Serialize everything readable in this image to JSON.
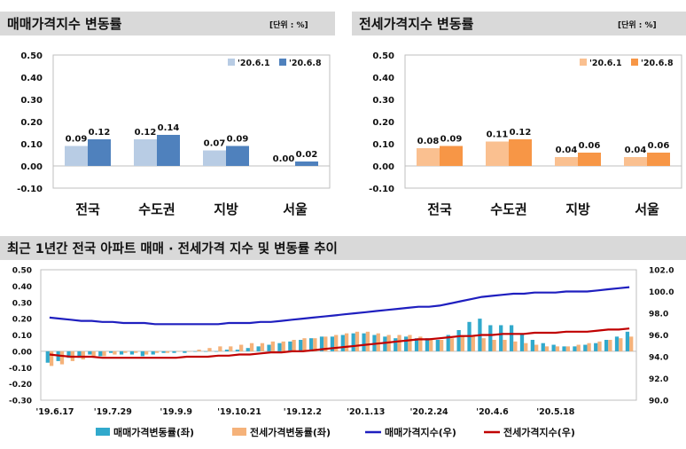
{
  "headers": {
    "sale": {
      "title": "매매가격지수 변동률",
      "unit": "[단위 : %]"
    },
    "jeonse": {
      "title": "전세가격지수 변동률",
      "unit": "[단위 : %]"
    },
    "trend": {
      "title": "최근 1년간 전국 아파트 매매 · 전세가격 지수 및 변동률 추이"
    }
  },
  "colors": {
    "sale_light": "#b8cce4",
    "sale_dark": "#4f81bd",
    "jeonse_light": "#fac090",
    "jeonse_dark": "#f79646",
    "sale_change_bar": "#31a9cc",
    "jeonse_change_bar": "#f5b27a",
    "sale_index_line": "#1f1fbf",
    "jeonse_index_line": "#c00000"
  },
  "chart_data": [
    {
      "type": "bar",
      "categories": [
        "전국",
        "수도권",
        "지방",
        "서울"
      ],
      "series": [
        {
          "name": "'20.6.1",
          "values": [
            0.09,
            0.12,
            0.07,
            0.0
          ]
        },
        {
          "name": "'20.6.8",
          "values": [
            0.12,
            0.14,
            0.09,
            0.02
          ]
        }
      ],
      "data_labels": [
        [
          "0.09",
          "0.12",
          "0.07",
          "0.00"
        ],
        [
          "0.12",
          "0.14",
          "0.09",
          "0.02"
        ]
      ],
      "ylim": [
        -0.1,
        0.5
      ],
      "yticks": [
        "0.50",
        "0.40",
        "0.30",
        "0.20",
        "0.10",
        "0.00",
        "-0.10"
      ],
      "legend": "top-right",
      "grid": false
    },
    {
      "type": "bar",
      "categories": [
        "전국",
        "수도권",
        "지방",
        "서울"
      ],
      "series": [
        {
          "name": "'20.6.1",
          "values": [
            0.08,
            0.11,
            0.04,
            0.04
          ]
        },
        {
          "name": "'20.6.8",
          "values": [
            0.09,
            0.12,
            0.06,
            0.06
          ]
        }
      ],
      "data_labels": [
        [
          "0.08",
          "0.11",
          "0.04",
          "0.04"
        ],
        [
          "0.09",
          "0.12",
          "0.06",
          "0.06"
        ]
      ],
      "ylim": [
        -0.1,
        0.5
      ],
      "yticks": [
        "0.50",
        "0.40",
        "0.30",
        "0.20",
        "0.10",
        "0.00",
        "-0.10"
      ],
      "legend": "top-right",
      "grid": false
    },
    {
      "type": "bar+line",
      "x_tick_labels": [
        "'19.6.17",
        "'19.7.29",
        "'19.9.9",
        "'19.10.21",
        "'19.12.2",
        "'20.1.13",
        "'20.2.24",
        "'20.4.6",
        "'20.5.18"
      ],
      "y_left": {
        "ylim": [
          -0.3,
          0.5
        ],
        "ticks": [
          "0.50",
          "0.40",
          "0.30",
          "0.20",
          "0.10",
          "0.00",
          "-0.10",
          "-0.20",
          "-0.30"
        ]
      },
      "y_right": {
        "ylim": [
          90.0,
          102.0
        ],
        "ticks": [
          "102.0",
          "100.0",
          "98.0",
          "96.0",
          "94.0",
          "92.0",
          "90.0"
        ]
      },
      "series": [
        {
          "name": "매매가격변동률(좌)",
          "kind": "bar",
          "axis": "left",
          "values": [
            -0.07,
            -0.06,
            -0.04,
            -0.04,
            -0.02,
            -0.03,
            -0.01,
            -0.02,
            -0.02,
            -0.03,
            -0.02,
            -0.01,
            -0.01,
            -0.01,
            0.0,
            0.0,
            0.0,
            0.01,
            0.01,
            0.02,
            0.03,
            0.04,
            0.05,
            0.06,
            0.07,
            0.08,
            0.09,
            0.09,
            0.1,
            0.11,
            0.11,
            0.1,
            0.09,
            0.08,
            0.09,
            0.08,
            0.08,
            0.07,
            0.1,
            0.13,
            0.18,
            0.2,
            0.16,
            0.16,
            0.16,
            0.11,
            0.07,
            0.05,
            0.04,
            0.03,
            0.03,
            0.04,
            0.05,
            0.07,
            0.09,
            0.12
          ]
        },
        {
          "name": "전세가격변동률(좌)",
          "kind": "bar",
          "axis": "left",
          "values": [
            -0.09,
            -0.08,
            -0.06,
            -0.05,
            -0.03,
            -0.03,
            -0.02,
            -0.01,
            -0.01,
            -0.02,
            -0.01,
            -0.01,
            0.0,
            0.0,
            0.01,
            0.02,
            0.03,
            0.03,
            0.04,
            0.05,
            0.05,
            0.06,
            0.06,
            0.07,
            0.08,
            0.08,
            0.09,
            0.1,
            0.11,
            0.12,
            0.12,
            0.11,
            0.1,
            0.1,
            0.1,
            0.09,
            0.08,
            0.07,
            0.08,
            0.09,
            0.09,
            0.08,
            0.07,
            0.07,
            0.06,
            0.05,
            0.04,
            0.03,
            0.03,
            0.03,
            0.04,
            0.05,
            0.06,
            0.07,
            0.08,
            0.09
          ]
        },
        {
          "name": "매매가격지수(우)",
          "kind": "line",
          "axis": "right",
          "values": [
            97.6,
            97.5,
            97.4,
            97.3,
            97.3,
            97.2,
            97.2,
            97.1,
            97.1,
            97.1,
            97.0,
            97.0,
            97.0,
            97.0,
            97.0,
            97.0,
            97.0,
            97.1,
            97.1,
            97.1,
            97.2,
            97.2,
            97.3,
            97.4,
            97.5,
            97.6,
            97.7,
            97.8,
            97.9,
            98.0,
            98.1,
            98.2,
            98.3,
            98.4,
            98.5,
            98.6,
            98.6,
            98.7,
            98.9,
            99.1,
            99.3,
            99.5,
            99.6,
            99.7,
            99.8,
            99.8,
            99.9,
            99.9,
            99.9,
            100.0,
            100.0,
            100.0,
            100.1,
            100.2,
            100.3,
            100.4
          ]
        },
        {
          "name": "전세가격지수(우)",
          "kind": "line",
          "axis": "right",
          "values": [
            94.2,
            94.1,
            94.0,
            94.0,
            94.0,
            93.9,
            93.9,
            93.9,
            93.9,
            93.9,
            93.9,
            93.9,
            93.9,
            94.0,
            94.0,
            94.0,
            94.1,
            94.1,
            94.2,
            94.2,
            94.3,
            94.4,
            94.4,
            94.5,
            94.5,
            94.6,
            94.7,
            94.8,
            94.9,
            95.0,
            95.1,
            95.2,
            95.3,
            95.4,
            95.5,
            95.6,
            95.6,
            95.7,
            95.8,
            95.9,
            95.9,
            96.0,
            96.0,
            96.1,
            96.1,
            96.1,
            96.2,
            96.2,
            96.2,
            96.3,
            96.3,
            96.3,
            96.4,
            96.5,
            96.5,
            96.6
          ]
        }
      ],
      "legend": "bottom",
      "grid": false
    }
  ]
}
